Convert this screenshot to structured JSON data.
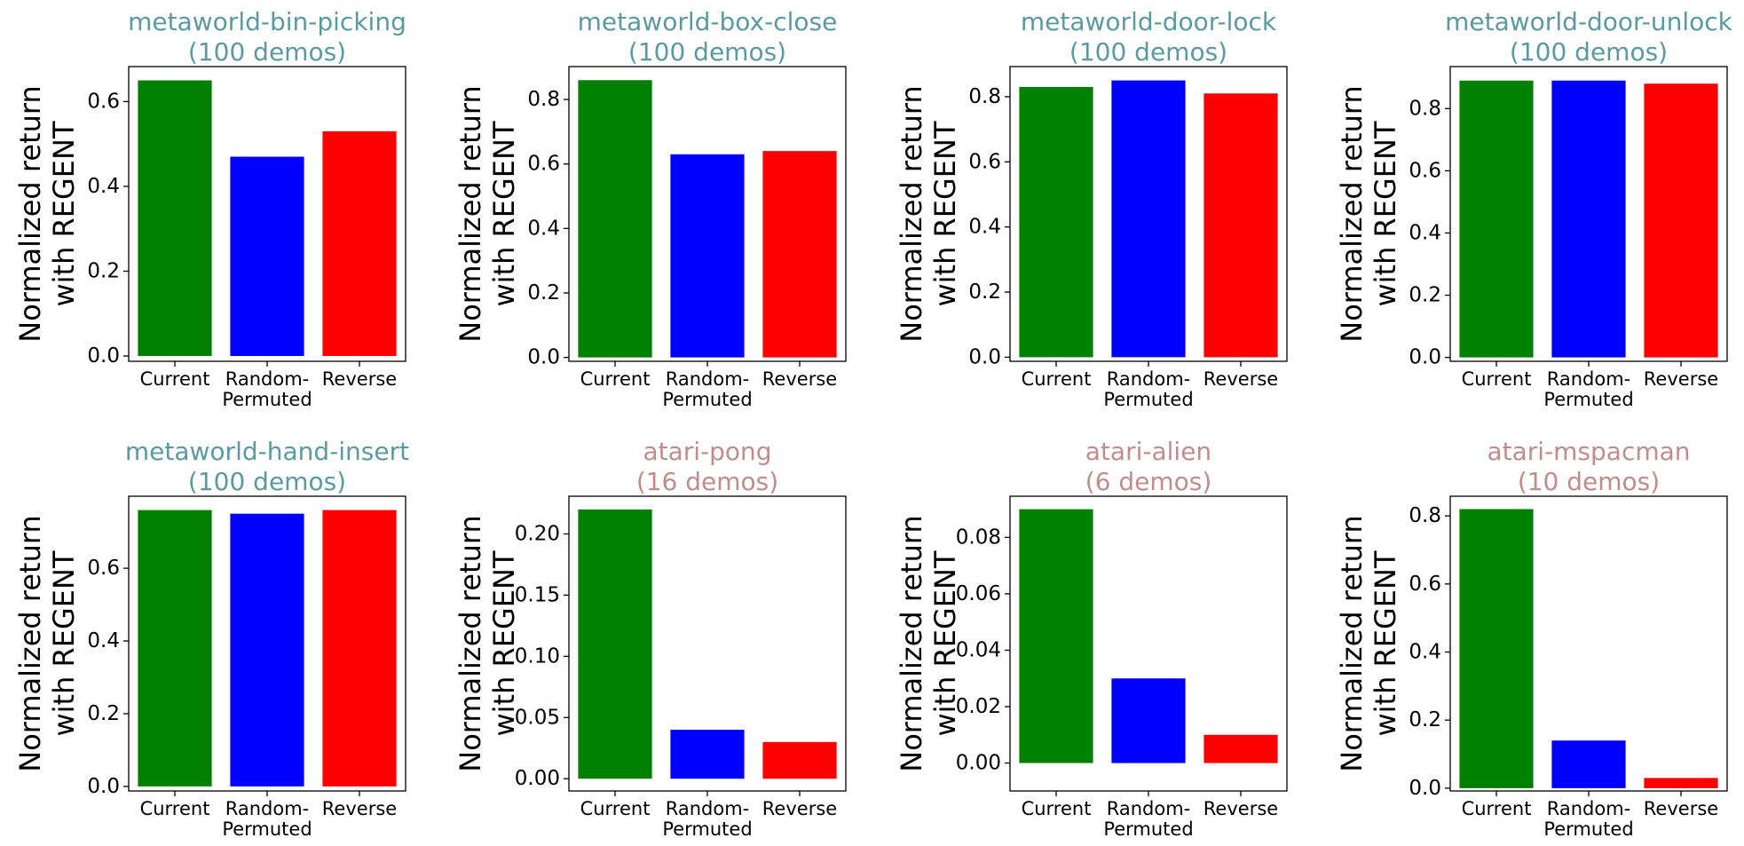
{
  "chart_data": [
    {
      "type": "bar",
      "title_lines": [
        "metaworld-bin-picking",
        "(100 demos)"
      ],
      "title_color": "#5b9aa0",
      "ylabel_lines": [
        "Normalized return",
        "with REGENT"
      ],
      "categories": [
        [
          "Current"
        ],
        [
          "Random-",
          "Permuted"
        ],
        [
          "Reverse"
        ]
      ],
      "values": [
        0.65,
        0.47,
        0.53
      ],
      "bar_colors": [
        "#008000",
        "#0000ff",
        "#ff0000"
      ],
      "ylim": [
        -0.0125,
        0.6825
      ],
      "yticks": [
        0.0,
        0.2,
        0.4,
        0.6
      ],
      "ytick_labels": [
        "0.0",
        "0.2",
        "0.4",
        "0.6"
      ]
    },
    {
      "type": "bar",
      "title_lines": [
        "metaworld-box-close",
        "(100 demos)"
      ],
      "title_color": "#5b9aa0",
      "ylabel_lines": [
        "Normalized return",
        "with REGENT"
      ],
      "categories": [
        [
          "Current"
        ],
        [
          "Random-",
          "Permuted"
        ],
        [
          "Reverse"
        ]
      ],
      "values": [
        0.86,
        0.63,
        0.64
      ],
      "bar_colors": [
        "#008000",
        "#0000ff",
        "#ff0000"
      ],
      "ylim": [
        -0.012,
        0.902
      ],
      "yticks": [
        0.0,
        0.2,
        0.4,
        0.6,
        0.8
      ],
      "ytick_labels": [
        "0.0",
        "0.2",
        "0.4",
        "0.6",
        "0.8"
      ]
    },
    {
      "type": "bar",
      "title_lines": [
        "metaworld-door-lock",
        "(100 demos)"
      ],
      "title_color": "#5b9aa0",
      "ylabel_lines": [
        "Normalized return",
        "with REGENT"
      ],
      "categories": [
        [
          "Current"
        ],
        [
          "Random-",
          "Permuted"
        ],
        [
          "Reverse"
        ]
      ],
      "values": [
        0.83,
        0.85,
        0.81
      ],
      "bar_colors": [
        "#008000",
        "#0000ff",
        "#ff0000"
      ],
      "ylim": [
        -0.0125,
        0.8925
      ],
      "yticks": [
        0.0,
        0.2,
        0.4,
        0.6,
        0.8
      ],
      "ytick_labels": [
        "0.0",
        "0.2",
        "0.4",
        "0.6",
        "0.8"
      ]
    },
    {
      "type": "bar",
      "title_lines": [
        "metaworld-door-unlock",
        "(100 demos)"
      ],
      "title_color": "#5b9aa0",
      "ylabel_lines": [
        "Normalized return",
        "with REGENT"
      ],
      "categories": [
        [
          "Current"
        ],
        [
          "Random-",
          "Permuted"
        ],
        [
          "Reverse"
        ]
      ],
      "values": [
        0.89,
        0.89,
        0.88
      ],
      "bar_colors": [
        "#008000",
        "#0000ff",
        "#ff0000"
      ],
      "ylim": [
        -0.0125,
        0.935
      ],
      "yticks": [
        0.0,
        0.2,
        0.4,
        0.6,
        0.8
      ],
      "ytick_labels": [
        "0.0",
        "0.2",
        "0.4",
        "0.6",
        "0.8"
      ]
    },
    {
      "type": "bar",
      "title_lines": [
        "metaworld-hand-insert",
        "(100 demos)"
      ],
      "title_color": "#5b9aa0",
      "ylabel_lines": [
        "Normalized return",
        "with REGENT"
      ],
      "categories": [
        [
          "Current"
        ],
        [
          "Random-",
          "Permuted"
        ],
        [
          "Reverse"
        ]
      ],
      "values": [
        0.76,
        0.75,
        0.76
      ],
      "bar_colors": [
        "#008000",
        "#0000ff",
        "#ff0000"
      ],
      "ylim": [
        -0.0125,
        0.798
      ],
      "yticks": [
        0.0,
        0.2,
        0.4,
        0.6
      ],
      "ytick_labels": [
        "0.0",
        "0.2",
        "0.4",
        "0.6"
      ]
    },
    {
      "type": "bar",
      "title_lines": [
        "atari-pong",
        "(16 demos)"
      ],
      "title_color": "#c08c8c",
      "ylabel_lines": [
        "Normalized return",
        "with REGENT"
      ],
      "categories": [
        [
          "Current"
        ],
        [
          "Random-",
          "Permuted"
        ],
        [
          "Reverse"
        ]
      ],
      "values": [
        0.22,
        0.04,
        0.03
      ],
      "bar_colors": [
        "#008000",
        "#0000ff",
        "#ff0000"
      ],
      "ylim": [
        -0.01,
        0.2308
      ],
      "yticks": [
        0.0,
        0.05,
        0.1,
        0.15,
        0.2
      ],
      "ytick_labels": [
        "0.00",
        "0.05",
        "0.10",
        "0.15",
        "0.20"
      ]
    },
    {
      "type": "bar",
      "title_lines": [
        "atari-alien",
        "(6 demos)"
      ],
      "title_color": "#c08c8c",
      "ylabel_lines": [
        "Normalized return",
        "with REGENT"
      ],
      "categories": [
        [
          "Current"
        ],
        [
          "Random-",
          "Permuted"
        ],
        [
          "Reverse"
        ]
      ],
      "values": [
        0.09,
        0.03,
        0.01
      ],
      "bar_colors": [
        "#008000",
        "#0000ff",
        "#ff0000"
      ],
      "ylim": [
        -0.0099,
        0.0946
      ],
      "yticks": [
        0.0,
        0.02,
        0.04,
        0.06,
        0.08
      ],
      "ytick_labels": [
        "0.00",
        "0.02",
        "0.04",
        "0.06",
        "0.08"
      ]
    },
    {
      "type": "bar",
      "title_lines": [
        "atari-mspacman",
        "(10 demos)"
      ],
      "title_color": "#c08c8c",
      "ylabel_lines": [
        "Normalized return",
        "with REGENT"
      ],
      "categories": [
        [
          "Current"
        ],
        [
          "Random-",
          "Permuted"
        ],
        [
          "Reverse"
        ]
      ],
      "values": [
        0.82,
        0.14,
        0.03
      ],
      "bar_colors": [
        "#008000",
        "#0000ff",
        "#ff0000"
      ],
      "ylim": [
        -0.0082,
        0.8578
      ],
      "yticks": [
        0.0,
        0.2,
        0.4,
        0.6,
        0.8
      ],
      "ytick_labels": [
        "0.0",
        "0.2",
        "0.4",
        "0.6",
        "0.8"
      ]
    }
  ]
}
